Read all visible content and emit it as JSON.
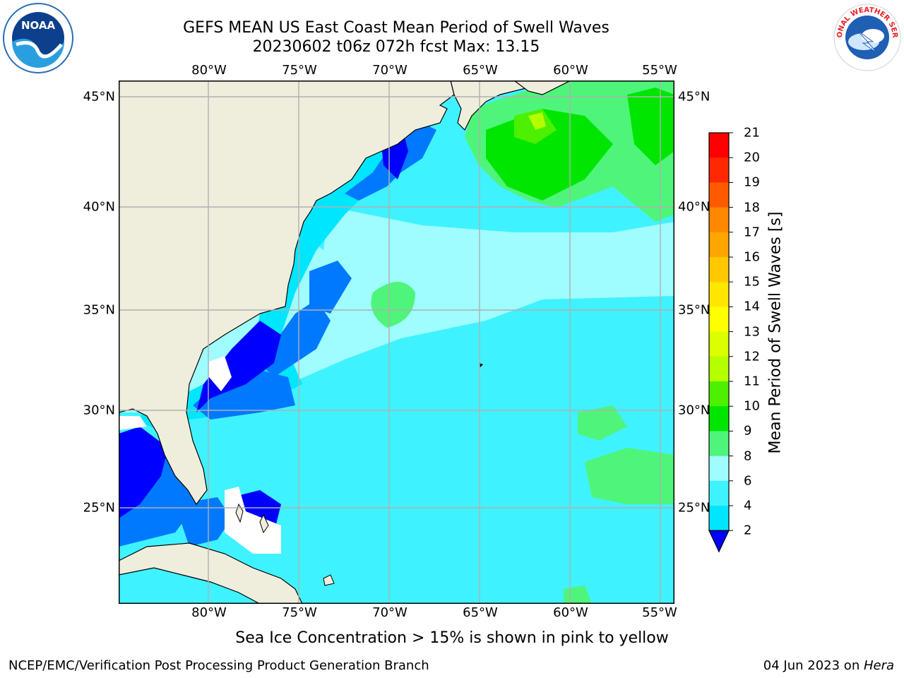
{
  "title": {
    "line1": "GEFS MEAN US East Coast Mean Period of Swell Waves",
    "line2": "20230602 t06z 072h fcst   Max: 13.15"
  },
  "map": {
    "lon_labels": [
      "80°W",
      "75°W",
      "70°W",
      "65°W",
      "60°W",
      "55°W"
    ],
    "lat_labels": [
      "45°N",
      "40°N",
      "35°N",
      "30°N",
      "25°N"
    ],
    "land_color": "#efeddc",
    "grid_color": "#b0b0b0"
  },
  "colorbar": {
    "label": "Mean Period of Swell Waves [s]",
    "ticks": [
      "2",
      "4",
      "6",
      "8",
      "9",
      "10",
      "11",
      "12",
      "13",
      "14",
      "15",
      "16",
      "17",
      "18",
      "19",
      "20",
      "21"
    ],
    "colors": [
      "#0000ff",
      "#0079ff",
      "#00e6ff",
      "#3ff2ff",
      "#9ffcff",
      "#4ef57a",
      "#00e600",
      "#4cf000",
      "#b4ff00",
      "#dcff00",
      "#ffff00",
      "#ffe600",
      "#ffc800",
      "#ffa500",
      "#ff8800",
      "#ff5a00",
      "#ff2800",
      "#ff0000"
    ]
  },
  "footer": {
    "ice_note": "Sea Ice Concentration > 15% is shown in pink to yellow",
    "credit_left": "NCEP/EMC/Verification Post Processing Product Generation Branch",
    "date": "04 Jun 2023 on ",
    "host": "Hera"
  },
  "logos": {
    "noaa": "NOAA",
    "nws": "NATIONAL WEATHER SERVICE"
  }
}
